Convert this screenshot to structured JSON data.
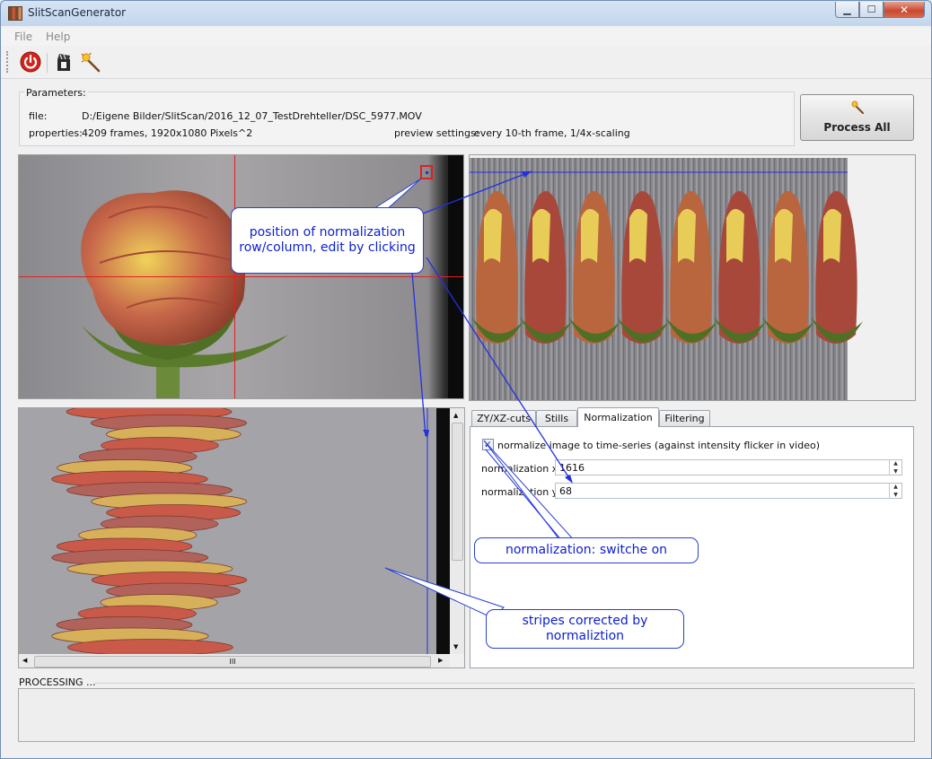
{
  "window": {
    "title": "SlitScanGenerator",
    "min_glyph": "▁",
    "max_glyph": "☐",
    "close_glyph": "✕"
  },
  "menubar": {
    "items": [
      "File",
      "Help"
    ]
  },
  "toolbar": {
    "tools": [
      "power-icon",
      "movie-clapper-icon",
      "magic-wand-icon"
    ]
  },
  "parameters": {
    "legend": "Parameters:",
    "file_label": "file:",
    "file_value": "D:/Eigene Bilder/SlitScan/2016_12_07_TestDrehteller/DSC_5977.MOV",
    "properties_label": "properties:",
    "properties_value": "4209 frames, 1920x1080 Pixels^2",
    "preview_label": "preview settings:",
    "preview_value": "every 10-th frame, 1/4x-scaling"
  },
  "process_button": {
    "label": "Process All"
  },
  "tabs": [
    {
      "label": "ZY/XZ-cuts",
      "active": false
    },
    {
      "label": "Stills",
      "active": false
    },
    {
      "label": "Normalization",
      "active": true
    },
    {
      "label": "Filtering",
      "active": false
    }
  ],
  "normalization": {
    "checkbox_label": "normalize image to time-series (against intensity flicker in video)",
    "checked": true,
    "x_label": "normalization x:",
    "x_value": "1616",
    "y_label": "normalization y:",
    "y_value": "68"
  },
  "scrollbar": {
    "grip": "III"
  },
  "processing": {
    "label": "PROCESSING ..."
  },
  "annotations": {
    "normalization_position": "position of normalization row/column, edit by clicking",
    "switch_on": "normalization: switche on",
    "stripes": "stripes corrected by normaliztion"
  },
  "colors": {
    "annotation": "#0b1fd0",
    "crosshair": "#e02020",
    "line": "#2330e0"
  }
}
